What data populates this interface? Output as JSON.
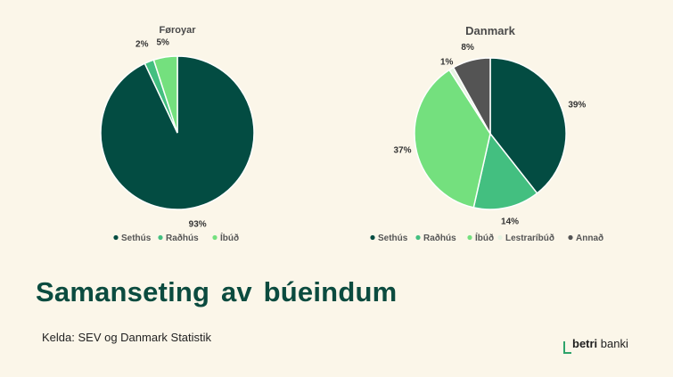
{
  "headline": "Samanseting av búeindum",
  "source": "Kelda: SEV og Danmark Statistik",
  "brand": {
    "bold": "betri",
    "regular": " banki"
  },
  "colors": {
    "background": "#fbf6e9",
    "sethus": "#034c42",
    "radhus": "#43bf80",
    "ibud": "#74e07e",
    "lestraribud": "#e6f4e2",
    "annad": "#545454"
  },
  "chart_data": [
    {
      "type": "pie",
      "title": "Føroyar",
      "labels": [
        "Sethús",
        "Raðhús",
        "Íbúð"
      ],
      "values": [
        93,
        2,
        5
      ],
      "value_labels": [
        "93%",
        "2%",
        "5%"
      ],
      "colors": [
        "#034c42",
        "#43bf80",
        "#74e07e"
      ],
      "legend_position": "bottom"
    },
    {
      "type": "pie",
      "title": "Danmark",
      "labels": [
        "Sethús",
        "Raðhús",
        "Íbúð",
        "Lestraríbúð",
        "Annað"
      ],
      "values": [
        39,
        14,
        37,
        1,
        8
      ],
      "value_labels": [
        "39%",
        "14%",
        "37%",
        "1%",
        "8%"
      ],
      "colors": [
        "#034c42",
        "#43bf80",
        "#74e07e",
        "#e6f4e2",
        "#545454"
      ],
      "legend_position": "bottom"
    }
  ]
}
